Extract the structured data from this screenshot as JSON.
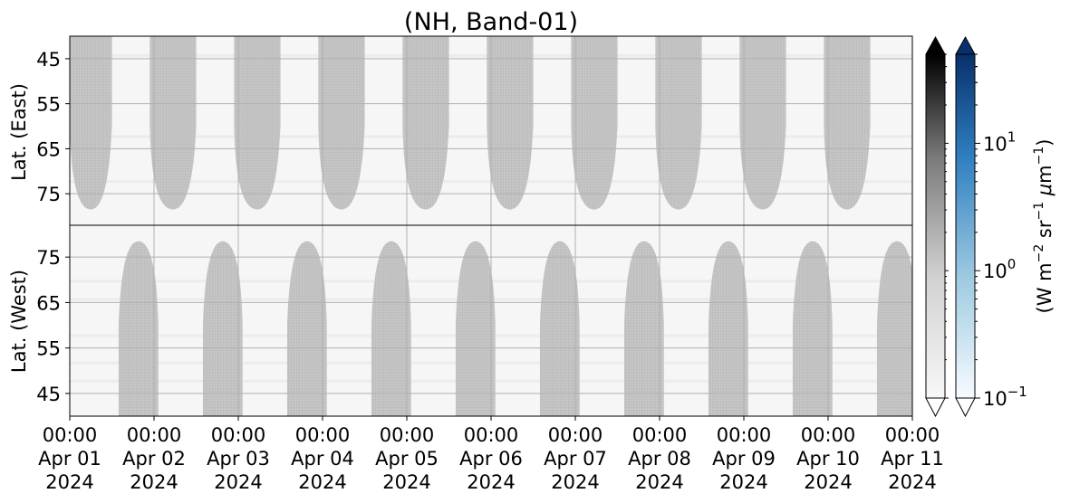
{
  "chart_data": {
    "type": "heatmap",
    "title": "(NH, Band-01)",
    "panels": [
      {
        "id": "east",
        "ylabel": "Lat. (East)",
        "yticks": [
          45,
          55,
          65,
          75
        ],
        "ylim": [
          40,
          82
        ],
        "orientation": "increasing-down"
      },
      {
        "id": "west",
        "ylabel": "Lat. (West)",
        "yticks": [
          75,
          65,
          55,
          45
        ],
        "ylim": [
          40,
          82
        ],
        "orientation": "increasing-up"
      }
    ],
    "x": {
      "type": "date",
      "start": "2024-04-01 00:00",
      "end": "2024-04-11 00:00",
      "ticks": [
        {
          "time": "00:00",
          "date": "Apr 01",
          "year": "2024"
        },
        {
          "time": "00:00",
          "date": "Apr 02",
          "year": "2024"
        },
        {
          "time": "00:00",
          "date": "Apr 03",
          "year": "2024"
        },
        {
          "time": "00:00",
          "date": "Apr 04",
          "year": "2024"
        },
        {
          "time": "00:00",
          "date": "Apr 05",
          "year": "2024"
        },
        {
          "time": "00:00",
          "date": "Apr 06",
          "year": "2024"
        },
        {
          "time": "00:00",
          "date": "Apr 07",
          "year": "2024"
        },
        {
          "time": "00:00",
          "date": "Apr 08",
          "year": "2024"
        },
        {
          "time": "00:00",
          "date": "Apr 09",
          "year": "2024"
        },
        {
          "time": "00:00",
          "date": "Apr 10",
          "year": "2024"
        },
        {
          "time": "00:00",
          "date": "Apr 11",
          "year": "2024"
        }
      ]
    },
    "daylight_bands": [
      {
        "panel": "east",
        "start_day": 0.0,
        "end_day": 0.5,
        "edge_lat": 78.5
      },
      {
        "panel": "east",
        "start_day": 0.95,
        "end_day": 1.5,
        "edge_lat": 78.5
      },
      {
        "panel": "east",
        "start_day": 1.95,
        "end_day": 2.5,
        "edge_lat": 78.5
      },
      {
        "panel": "east",
        "start_day": 2.95,
        "end_day": 3.5,
        "edge_lat": 78.5
      },
      {
        "panel": "east",
        "start_day": 3.95,
        "end_day": 4.5,
        "edge_lat": 78.5
      },
      {
        "panel": "east",
        "start_day": 4.95,
        "end_day": 5.5,
        "edge_lat": 78.5
      },
      {
        "panel": "east",
        "start_day": 5.95,
        "end_day": 6.5,
        "edge_lat": 78.5
      },
      {
        "panel": "east",
        "start_day": 6.95,
        "end_day": 7.5,
        "edge_lat": 78.5
      },
      {
        "panel": "east",
        "start_day": 7.95,
        "end_day": 8.5,
        "edge_lat": 78.5
      },
      {
        "panel": "east",
        "start_day": 8.95,
        "end_day": 9.5,
        "edge_lat": 78.5
      },
      {
        "panel": "west",
        "start_day": 0.58,
        "end_day": 1.05,
        "edge_lat": 78.5
      },
      {
        "panel": "west",
        "start_day": 1.58,
        "end_day": 2.05,
        "edge_lat": 78.5
      },
      {
        "panel": "west",
        "start_day": 2.58,
        "end_day": 3.05,
        "edge_lat": 78.5
      },
      {
        "panel": "west",
        "start_day": 3.58,
        "end_day": 4.05,
        "edge_lat": 78.5
      },
      {
        "panel": "west",
        "start_day": 4.58,
        "end_day": 5.05,
        "edge_lat": 78.5
      },
      {
        "panel": "west",
        "start_day": 5.58,
        "end_day": 6.05,
        "edge_lat": 78.5
      },
      {
        "panel": "west",
        "start_day": 6.58,
        "end_day": 7.05,
        "edge_lat": 78.5
      },
      {
        "panel": "west",
        "start_day": 7.58,
        "end_day": 8.05,
        "edge_lat": 78.5
      },
      {
        "panel": "west",
        "start_day": 8.58,
        "end_day": 9.05,
        "edge_lat": 78.5
      },
      {
        "panel": "west",
        "start_day": 9.58,
        "end_day": 10.05,
        "edge_lat": 78.5
      }
    ],
    "colorbars": [
      {
        "cmap": "Greys",
        "extend": "both",
        "scale": "log",
        "range": [
          0.1,
          50
        ]
      },
      {
        "cmap": "Blues",
        "extend": "both",
        "scale": "log",
        "range": [
          0.1,
          50
        ],
        "ticks": [
          {
            "base": "10",
            "exp": "1"
          },
          {
            "base": "10",
            "exp": "0"
          },
          {
            "base": "10",
            "exp": "−1"
          }
        ],
        "label": "(W m−2 sr−1 μm−1)"
      }
    ],
    "colors": {
      "band_fill": "#c3c3c3",
      "background": "#f6f6f6",
      "grid": "#b0b0b0"
    },
    "grid": true
  }
}
